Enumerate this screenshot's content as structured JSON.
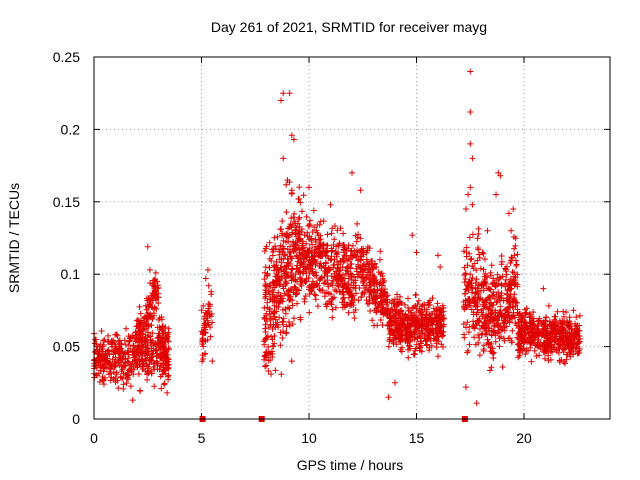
{
  "chart_data": {
    "type": "scatter",
    "title": "Day 261 of 2021, SRMTID for receiver mayg",
    "xlabel": "GPS time / hours",
    "ylabel": "SRMTID / TECUs",
    "xlim": [
      0,
      24
    ],
    "ylim": [
      0,
      0.25
    ],
    "xticks": [
      0,
      5,
      10,
      15,
      20
    ],
    "xtick_labels": [
      "0",
      "5",
      "10",
      "15",
      "20"
    ],
    "yticks": [
      0,
      0.05,
      0.1,
      0.15,
      0.2,
      0.25
    ],
    "ytick_labels": [
      "0",
      "0.05",
      "0.1",
      "0.15",
      "0.2",
      "0.25"
    ],
    "grid": true,
    "marker": "+",
    "color": "#e00000",
    "segments": [
      {
        "x": [
          0.0,
          3.5
        ],
        "y_base_start": 0.04,
        "y_base_end": 0.045,
        "spread": 0.012,
        "n": 420
      },
      {
        "x": [
          1.9,
          3.0
        ],
        "y_base_start": 0.05,
        "y_base_end": 0.09,
        "spread": 0.012,
        "n": 140
      },
      {
        "x": [
          3.0,
          3.5
        ],
        "y_base_start": 0.06,
        "y_base_end": 0.04,
        "spread": 0.012,
        "n": 60
      },
      {
        "x": [
          5.0,
          5.5
        ],
        "y_base_start": 0.055,
        "y_base_end": 0.08,
        "spread": 0.014,
        "n": 55
      },
      {
        "x": [
          7.9,
          9.6
        ],
        "y_base_start": 0.07,
        "y_base_end": 0.12,
        "spread": 0.03,
        "n": 360
      },
      {
        "x": [
          9.6,
          12.2
        ],
        "y_base_start": 0.115,
        "y_base_end": 0.095,
        "spread": 0.02,
        "n": 420
      },
      {
        "x": [
          12.2,
          13.7
        ],
        "y_base_start": 0.11,
        "y_base_end": 0.075,
        "spread": 0.015,
        "n": 220
      },
      {
        "x": [
          13.7,
          16.3
        ],
        "y_base_start": 0.065,
        "y_base_end": 0.065,
        "spread": 0.013,
        "n": 470
      },
      {
        "x": [
          17.2,
          18.9
        ],
        "y_base_start": 0.09,
        "y_base_end": 0.07,
        "spread": 0.025,
        "n": 300
      },
      {
        "x": [
          18.9,
          19.7
        ],
        "y_base_start": 0.08,
        "y_base_end": 0.09,
        "spread": 0.025,
        "n": 140
      },
      {
        "x": [
          19.7,
          22.6
        ],
        "y_base_start": 0.06,
        "y_base_end": 0.055,
        "spread": 0.011,
        "n": 500
      }
    ],
    "highlight_points": [
      {
        "x": 8.7,
        "y": 0.22
      },
      {
        "x": 8.8,
        "y": 0.225
      },
      {
        "x": 9.1,
        "y": 0.225
      },
      {
        "x": 9.2,
        "y": 0.196
      },
      {
        "x": 9.3,
        "y": 0.193
      },
      {
        "x": 8.8,
        "y": 0.18
      },
      {
        "x": 9.0,
        "y": 0.165
      },
      {
        "x": 9.2,
        "y": 0.158
      },
      {
        "x": 10.0,
        "y": 0.16
      },
      {
        "x": 12.0,
        "y": 0.17
      },
      {
        "x": 12.4,
        "y": 0.158
      },
      {
        "x": 11.0,
        "y": 0.148
      },
      {
        "x": 2.5,
        "y": 0.119
      },
      {
        "x": 2.6,
        "y": 0.103
      },
      {
        "x": 5.3,
        "y": 0.103
      },
      {
        "x": 5.2,
        "y": 0.097
      },
      {
        "x": 14.8,
        "y": 0.127
      },
      {
        "x": 15.0,
        "y": 0.115
      },
      {
        "x": 16.0,
        "y": 0.113
      },
      {
        "x": 16.1,
        "y": 0.105
      },
      {
        "x": 13.3,
        "y": 0.11
      },
      {
        "x": 17.5,
        "y": 0.24
      },
      {
        "x": 17.5,
        "y": 0.212
      },
      {
        "x": 17.5,
        "y": 0.19
      },
      {
        "x": 17.6,
        "y": 0.18
      },
      {
        "x": 17.5,
        "y": 0.16
      },
      {
        "x": 17.4,
        "y": 0.155
      },
      {
        "x": 17.6,
        "y": 0.148
      },
      {
        "x": 17.3,
        "y": 0.145
      },
      {
        "x": 18.8,
        "y": 0.17
      },
      {
        "x": 18.9,
        "y": 0.168
      },
      {
        "x": 18.7,
        "y": 0.155
      },
      {
        "x": 19.3,
        "y": 0.142
      },
      {
        "x": 19.5,
        "y": 0.145
      },
      {
        "x": 19.4,
        "y": 0.13
      },
      {
        "x": 18.3,
        "y": 0.13
      },
      {
        "x": 17.3,
        "y": 0.022
      },
      {
        "x": 17.8,
        "y": 0.011
      },
      {
        "x": 5.5,
        "y": 0.04
      },
      {
        "x": 3.4,
        "y": 0.018
      },
      {
        "x": 1.8,
        "y": 0.013
      },
      {
        "x": 20.9,
        "y": 0.09
      },
      {
        "x": 22.3,
        "y": 0.075
      },
      {
        "x": 8.0,
        "y": 0.046
      },
      {
        "x": 8.3,
        "y": 0.045
      },
      {
        "x": 9.2,
        "y": 0.04
      },
      {
        "x": 14.0,
        "y": 0.025
      },
      {
        "x": 13.7,
        "y": 0.015
      }
    ],
    "zero_markers": [
      {
        "x": 5.05,
        "y": 0
      },
      {
        "x": 7.8,
        "y": 0
      },
      {
        "x": 17.25,
        "y": 0
      }
    ]
  }
}
